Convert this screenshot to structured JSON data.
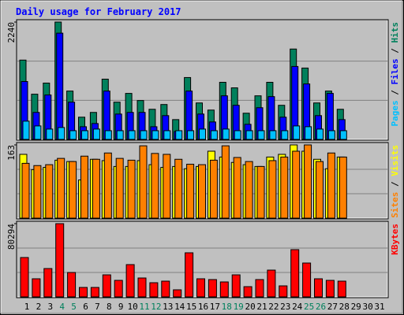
{
  "chart_data": {
    "type": "bar",
    "title": "Daily usage for February 2017",
    "legend_separator": " / ",
    "categories": [
      "1",
      "2",
      "3",
      "4",
      "5",
      "6",
      "7",
      "8",
      "9",
      "10",
      "11",
      "12",
      "13",
      "14",
      "15",
      "16",
      "17",
      "18",
      "19",
      "20",
      "21",
      "22",
      "23",
      "24",
      "25",
      "26",
      "27",
      "28",
      "29",
      "30",
      "31"
    ],
    "category_colors": [
      "#000000",
      "#000000",
      "#000000",
      "#00805c",
      "#00805c",
      "#000000",
      "#000000",
      "#000000",
      "#000000",
      "#000000",
      "#00805c",
      "#00805c",
      "#000000",
      "#000000",
      "#000000",
      "#000000",
      "#000000",
      "#00805c",
      "#00805c",
      "#000000",
      "#000000",
      "#000000",
      "#000000",
      "#000000",
      "#00805c",
      "#00805c",
      "#000000",
      "#000000",
      "#000000",
      "#000000",
      "#000000"
    ],
    "panels": [
      {
        "ylim": [
          0,
          2240
        ],
        "yticks": [
          2240
        ],
        "series": [
          {
            "name": "Hits",
            "color": "#00805c",
            "values": [
              1514,
              863,
              1075,
              2240,
              923,
              424,
              515,
              1150,
              711,
              878,
              742,
              575,
              666,
              378,
              1181,
              696,
              560,
              1090,
              984,
              500,
              832,
              1090,
              651,
              1725,
              1362,
              696,
              923,
              575,
              null,
              null,
              null
            ]
          },
          {
            "name": "Files",
            "color": "#0000ff",
            "values": [
              1105,
              515,
              848,
              2028,
              711,
              242,
              303,
              923,
              484,
              515,
              515,
              242,
              454,
              151,
              923,
              484,
              333,
              832,
              651,
              288,
              605,
              817,
              424,
              1392,
              1059,
              454,
              878,
              378,
              null,
              null,
              null
            ]
          },
          {
            "name": "Pages",
            "color": "#00c0ff",
            "values": [
              348,
              257,
              197,
              227,
              166,
              166,
              197,
              166,
              166,
              166,
              166,
              166,
              166,
              166,
              166,
              197,
              166,
              197,
              166,
              166,
              166,
              166,
              166,
              257,
              242,
              197,
              166,
              166,
              null,
              null,
              null
            ]
          }
        ]
      },
      {
        "ylim": [
          0,
          163
        ],
        "yticks": [
          163
        ],
        "series": [
          {
            "name": "Visits",
            "color": "#ffff00",
            "values": [
              142,
              108,
              113,
              129,
              126,
              85,
              131,
              128,
              115,
              115,
              128,
              119,
              113,
              115,
              110,
              115,
              149,
              136,
              124,
              119,
              115,
              136,
              142,
              163,
              149,
              131,
              110,
              136,
              null,
              null,
              null
            ]
          },
          {
            "name": "Sites",
            "color": "#ff8000",
            "values": [
              122,
              117,
              119,
              133,
              126,
              138,
              131,
              145,
              133,
              129,
              161,
              144,
              142,
              131,
              120,
              119,
              129,
              161,
              135,
              126,
              115,
              128,
              136,
              149,
              163,
              126,
              145,
              136,
              null,
              null,
              null
            ]
          }
        ]
      },
      {
        "ylim": [
          0,
          80294
        ],
        "yticks": [
          80294
        ],
        "series": [
          {
            "name": "KBytes",
            "color": "#ff0000",
            "values": [
              43168,
              19857,
              31081,
              80294,
              26764,
              10360,
              10360,
              24175,
              18131,
              35398,
              20721,
              15541,
              17268,
              7770,
              48349,
              19857,
              18994,
              16404,
              24175,
              11224,
              18994,
              29355,
              12087,
              51802,
              37125,
              19857,
              18131,
              17268,
              null,
              null,
              null
            ]
          }
        ]
      }
    ]
  }
}
